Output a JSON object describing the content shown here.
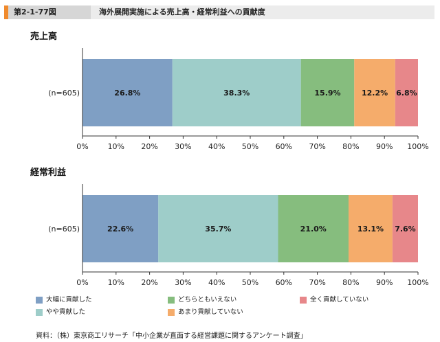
{
  "figure": {
    "number": "第2-1-77図",
    "title": "海外展開実施による売上高・経常利益への貢献度"
  },
  "colors": {
    "header_accent": "#f08a2c",
    "series": [
      "#7f9fc4",
      "#9ecdc9",
      "#86bd7e",
      "#f5ac6b",
      "#e7878a"
    ]
  },
  "chart_data": [
    {
      "type": "bar",
      "orientation": "horizontal-stacked",
      "title": "売上高",
      "categories": [
        "(n=605)"
      ],
      "series": [
        {
          "name": "大幅に貢献した",
          "values": [
            26.8
          ],
          "label": "26.8%"
        },
        {
          "name": "やや貢献した",
          "values": [
            38.3
          ],
          "label": "38.3%"
        },
        {
          "name": "どちらともいえない",
          "values": [
            15.9
          ],
          "label": "15.9%"
        },
        {
          "name": "あまり貢献していない",
          "values": [
            12.2
          ],
          "label": "12.2%"
        },
        {
          "name": "全く貢献していない",
          "values": [
            6.8
          ],
          "label": "6.8%"
        }
      ],
      "xlim": [
        0,
        100
      ],
      "ticks": [
        "0%",
        "10%",
        "20%",
        "30%",
        "40%",
        "50%",
        "60%",
        "70%",
        "80%",
        "90%",
        "100%"
      ]
    },
    {
      "type": "bar",
      "orientation": "horizontal-stacked",
      "title": "経常利益",
      "categories": [
        "(n=605)"
      ],
      "series": [
        {
          "name": "大幅に貢献した",
          "values": [
            22.6
          ],
          "label": "22.6%"
        },
        {
          "name": "やや貢献した",
          "values": [
            35.7
          ],
          "label": "35.7%"
        },
        {
          "name": "どちらともいえない",
          "values": [
            21.0
          ],
          "label": "21.0%"
        },
        {
          "name": "あまり貢献していない",
          "values": [
            13.1
          ],
          "label": "13.1%"
        },
        {
          "name": "全く貢献していない",
          "values": [
            7.6
          ],
          "label": "7.6%"
        }
      ],
      "xlim": [
        0,
        100
      ],
      "ticks": [
        "0%",
        "10%",
        "20%",
        "30%",
        "40%",
        "50%",
        "60%",
        "70%",
        "80%",
        "90%",
        "100%"
      ]
    }
  ],
  "legend": [
    {
      "label": "大幅に貢献した"
    },
    {
      "label": "やや貢献した"
    },
    {
      "label": "どちらともいえない"
    },
    {
      "label": "あまり貢献していない"
    },
    {
      "label": "全く貢献していない"
    }
  ],
  "source": "資料：（株）東京商工リサーチ「中小企業が直面する経営課題に関するアンケート調査」"
}
